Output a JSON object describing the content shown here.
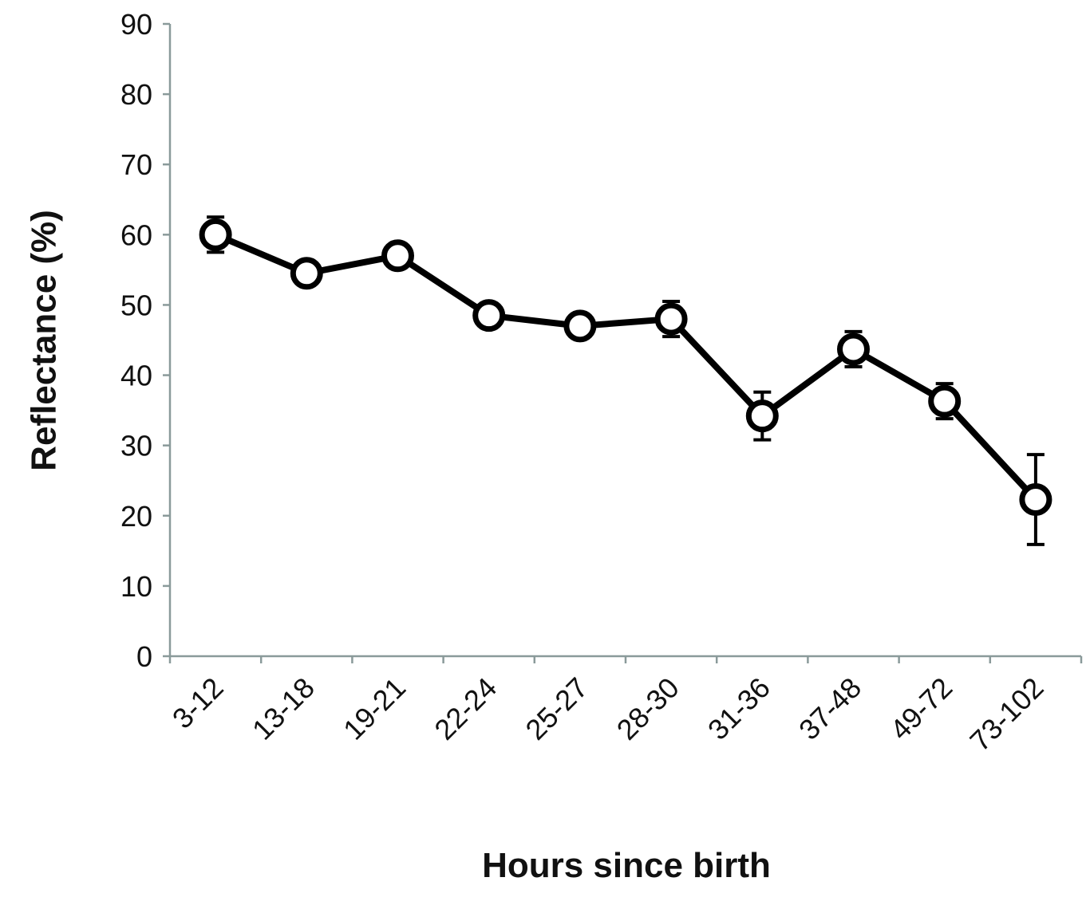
{
  "chart_data": {
    "type": "line",
    "xlabel": "Hours since birth",
    "ylabel": "Reflectance (%)",
    "categories": [
      "3-12",
      "13-18",
      "19-21",
      "22-24",
      "25-27",
      "28-30",
      "31-36",
      "37-48",
      "49-72",
      "73-102"
    ],
    "series": [
      {
        "color": "#000000",
        "values": [
          60,
          54.5,
          57,
          48.5,
          47,
          48,
          34.2,
          43.7,
          36.3,
          22.3
        ],
        "errors": [
          2.5,
          1.5,
          1.5,
          1.5,
          1.5,
          2.5,
          3.4,
          2.5,
          2.5,
          6.4
        ]
      }
    ],
    "ylim": [
      0,
      90
    ],
    "yticks": [
      0,
      10,
      20,
      30,
      40,
      50,
      60,
      70,
      80,
      90
    ],
    "grid": false
  }
}
